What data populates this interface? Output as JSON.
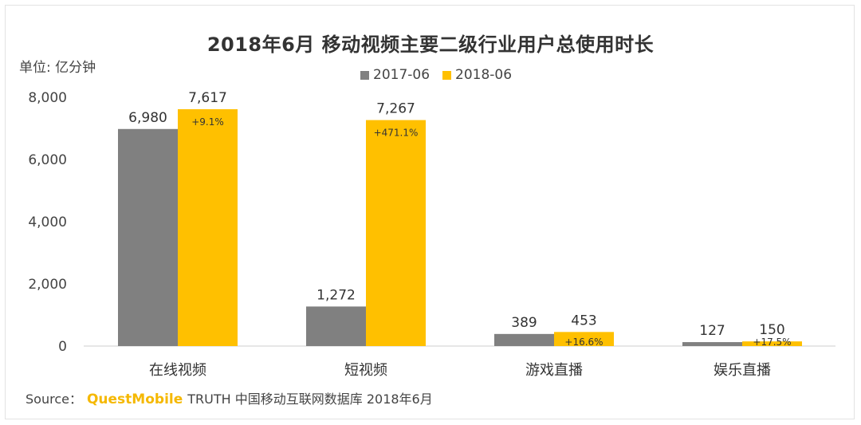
{
  "chart_data": {
    "type": "bar",
    "title": "2018年6月 移动视频主要二级行业用户总使用时长",
    "unit_label": "单位: 亿分钟",
    "categories": [
      "在线视频",
      "短视频",
      "游戏直播",
      "娱乐直播"
    ],
    "series": [
      {
        "name": "2017-06",
        "color": "#808080",
        "values": [
          6980,
          1272,
          389,
          127
        ],
        "labels": [
          "6,980",
          "1,272",
          "389",
          "127"
        ]
      },
      {
        "name": "2018-06",
        "color": "#ffc000",
        "values": [
          7617,
          7267,
          453,
          150
        ],
        "labels": [
          "7,617",
          "7,267",
          "453",
          "150"
        ]
      }
    ],
    "growth_labels": [
      "+9.1%",
      "+471.1%",
      "+16.6%",
      "+17.5%"
    ],
    "y_ticks": [
      0,
      2000,
      4000,
      6000,
      8000
    ],
    "y_tick_labels": [
      "0",
      "2,000",
      "4,000",
      "6,000",
      "8,000"
    ],
    "ylim": [
      0,
      8000
    ],
    "legend_position": "top-center",
    "grid": false
  },
  "source": {
    "prefix": "Source：",
    "brand": "QuestMobile",
    "text": "TRUTH 中国移动互联网数据库 2018年6月"
  }
}
